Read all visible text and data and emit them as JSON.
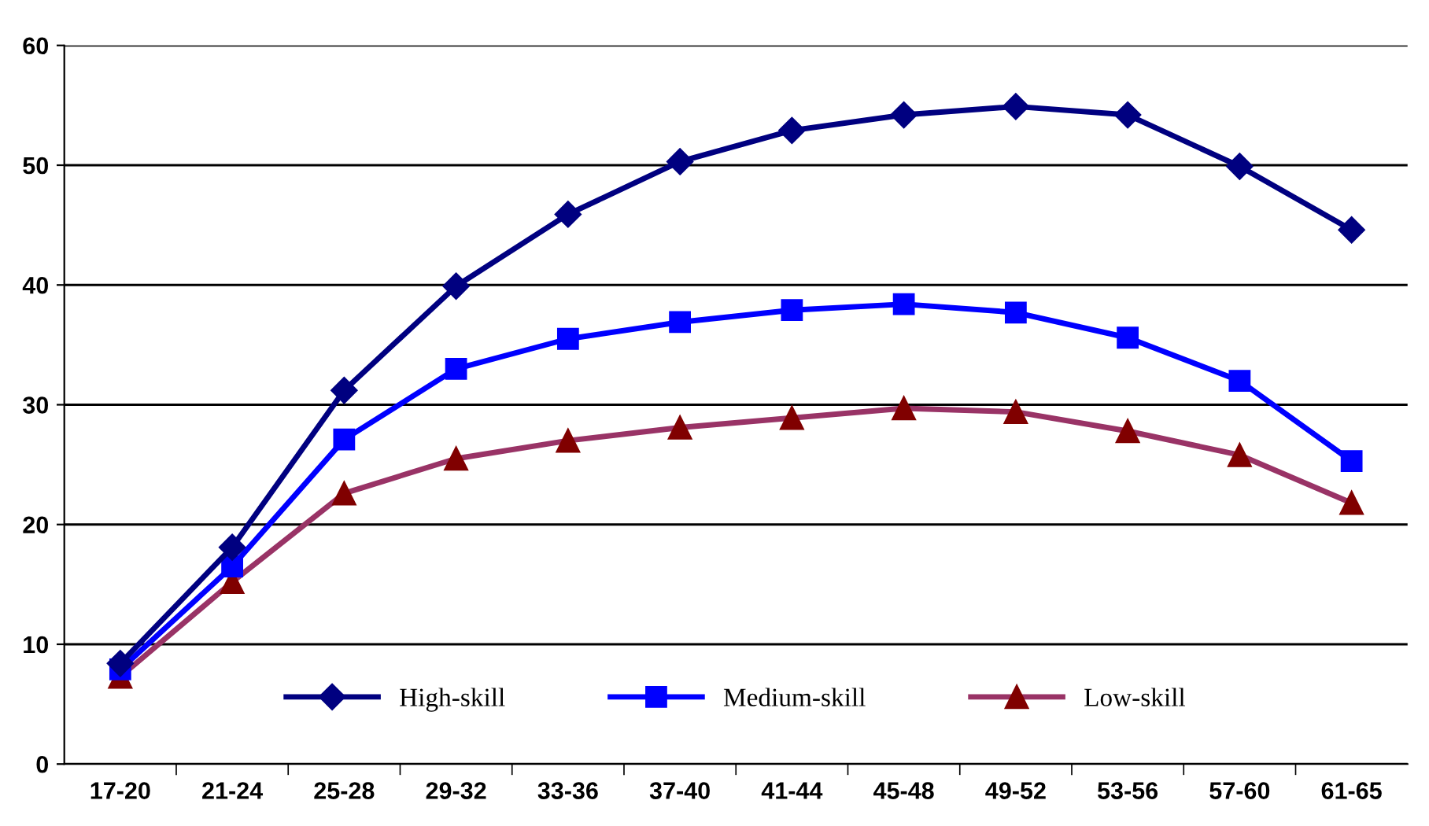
{
  "chart_data": {
    "type": "line",
    "categories": [
      "17-20",
      "21-24",
      "25-28",
      "29-32",
      "33-36",
      "37-40",
      "41-44",
      "45-48",
      "49-52",
      "53-56",
      "57-60",
      "61-65"
    ],
    "series": [
      {
        "name": "High-skill",
        "color": "#000080",
        "marker": "diamond",
        "values": [
          8.4,
          18.1,
          31.2,
          39.9,
          45.9,
          50.3,
          52.9,
          54.2,
          54.9,
          54.2,
          49.9,
          44.6
        ]
      },
      {
        "name": "Medium-skill",
        "color": "#0000ff",
        "marker": "square",
        "values": [
          7.9,
          16.5,
          27.1,
          33.0,
          35.5,
          36.9,
          37.9,
          38.4,
          37.7,
          35.6,
          32.0,
          25.3
        ]
      },
      {
        "name": "Low-skill",
        "color": "#993366",
        "marker": "triangle",
        "values": [
          7.3,
          15.2,
          22.6,
          25.5,
          27.0,
          28.1,
          28.9,
          29.7,
          29.4,
          27.8,
          25.8,
          21.8
        ]
      }
    ],
    "ylim": [
      0,
      60
    ],
    "yticks": [
      0,
      10,
      20,
      30,
      40,
      50,
      60
    ],
    "grid": "y",
    "legend": "bottom",
    "line_style": "solid"
  }
}
